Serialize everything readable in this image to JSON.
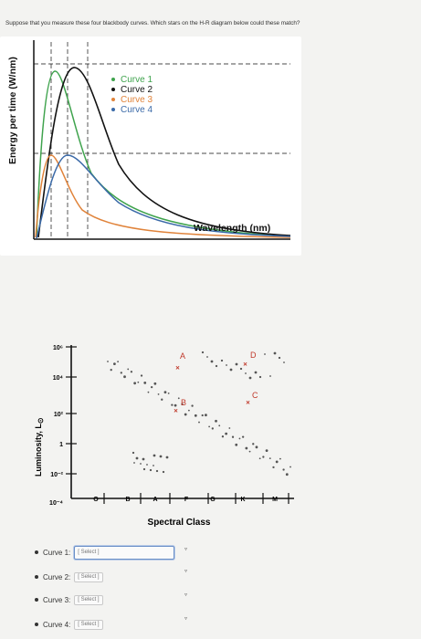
{
  "question": "Suppose that you measure these four blackbody curves. Which stars on the H-R diagram below could these match?",
  "colors": {
    "curve1": "#3fa34d",
    "curve2": "#111111",
    "curve3": "#e0833a",
    "curve4": "#3b6aa8"
  },
  "blackbody": {
    "ylabel": "Energy per time (W/nm)",
    "xlabel": "Wavelength (nm)",
    "legend": [
      "Curve 1",
      "Curve 2",
      "Curve 3",
      "Curve 4"
    ]
  },
  "chart_data": [
    {
      "type": "line",
      "xlabel": "Wavelength (nm)",
      "ylabel": "Energy per time (W/nm)",
      "legend_placement": "top-center",
      "series": [
        {
          "name": "Curve 1",
          "peak_x": 0.06,
          "peak_y": 0.78
        },
        {
          "name": "Curve 2",
          "peak_x": 0.13,
          "peak_y": 0.92
        },
        {
          "name": "Curve 3",
          "peak_x": 0.05,
          "peak_y": 0.42
        },
        {
          "name": "Curve 4",
          "peak_x": 0.11,
          "peak_y": 0.44
        }
      ]
    },
    {
      "type": "scatter",
      "xlabel": "Spectral Class",
      "ylabel": "Luminosity, L⊙",
      "y_ticks": [
        "10⁶",
        "10⁴",
        "10²",
        "1",
        "10⁻²",
        "10⁻⁴"
      ],
      "x_ticks": [
        "O",
        "B",
        "A",
        "F",
        "G",
        "K",
        "M"
      ],
      "labeled_stars": [
        "A",
        "B",
        "C",
        "D"
      ]
    }
  ],
  "hr": {
    "ylabel": "Luminosity, L",
    "ysub": "⊙",
    "xlabel": "Spectral Class",
    "y_ticks": [
      "10⁶",
      "10⁴",
      "10²",
      "1",
      "10⁻²",
      "10⁻⁴"
    ],
    "x_ticks": [
      "O",
      "B",
      "A",
      "F",
      "G",
      "K",
      "M"
    ],
    "stars": [
      "A",
      "B",
      "C",
      "D"
    ]
  },
  "answers": [
    {
      "label": "Curve 1:",
      "placeholder": "[ Select ]"
    },
    {
      "label": "Curve 2:",
      "placeholder": "[ Select ]"
    },
    {
      "label": "Curve 3:",
      "placeholder": "[ Select ]"
    },
    {
      "label": "Curve 4:",
      "placeholder": "[ Select ]"
    }
  ]
}
